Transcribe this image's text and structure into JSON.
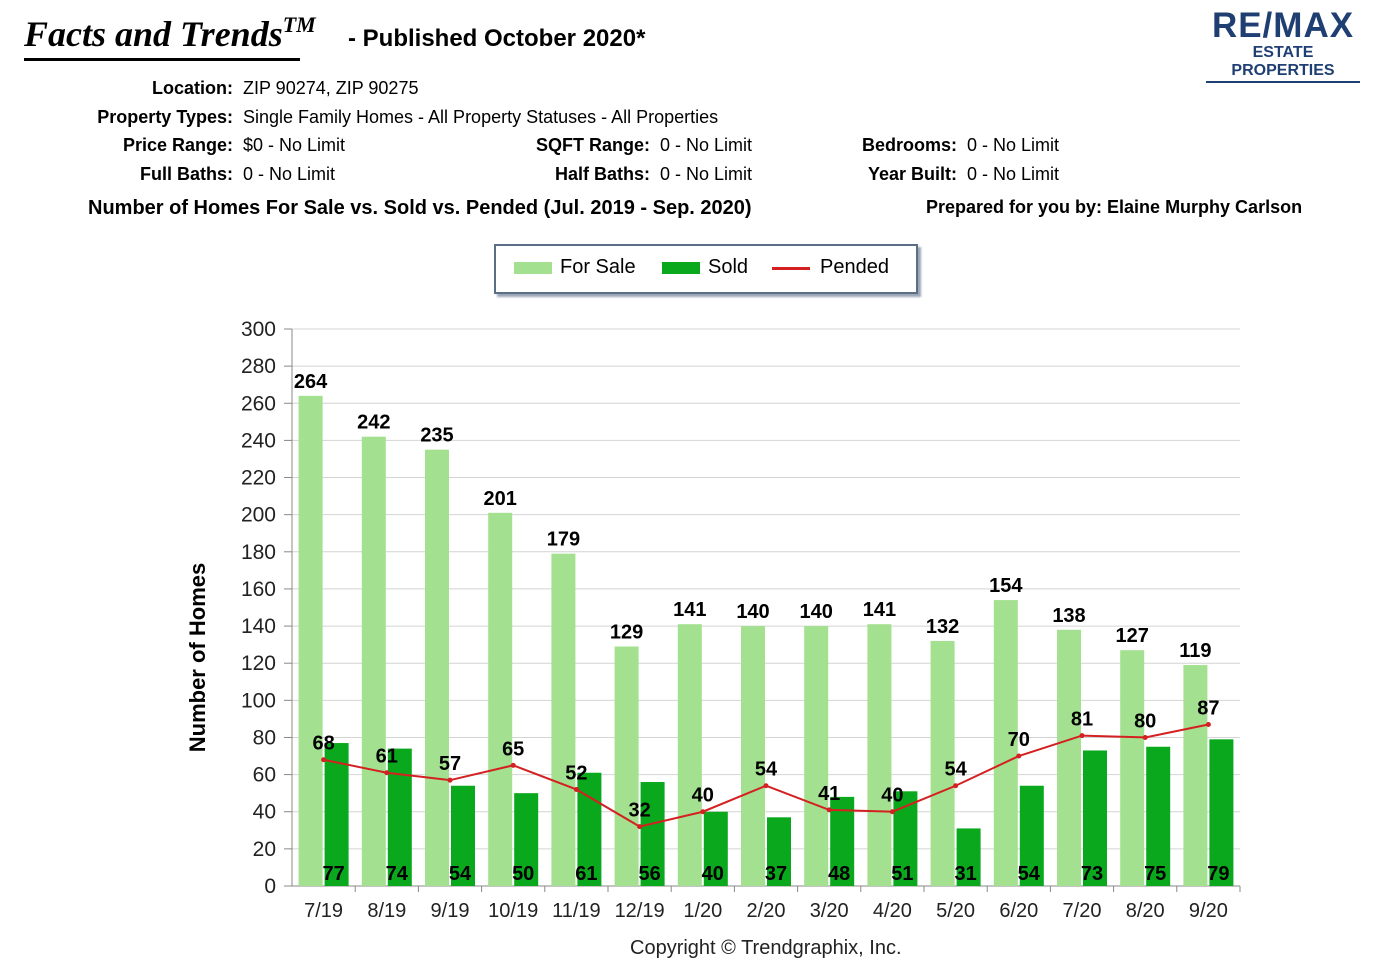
{
  "header": {
    "title": "Facts and Trends",
    "title_tm": "TM",
    "published": "- Published October 2020*",
    "logo_main": "RE/MAX",
    "logo_sub": "ESTATE PROPERTIES"
  },
  "filters": {
    "location_label": "Location:",
    "location_value": "ZIP 90274, ZIP 90275",
    "property_types_label": "Property Types:",
    "property_types_value": "Single Family Homes - All Property Statuses - All Properties",
    "price_range_label": "Price Range:",
    "price_range_value": "$0 - No Limit",
    "sqft_range_label": "SQFT Range:",
    "sqft_range_value": "0 - No Limit",
    "bedrooms_label": "Bedrooms:",
    "bedrooms_value": "0 - No Limit",
    "full_baths_label": "Full Baths:",
    "full_baths_value": "0 - No Limit",
    "half_baths_label": "Half Baths:",
    "half_baths_value": "0 - No Limit",
    "year_built_label": "Year Built:",
    "year_built_value": "0 - No Limit"
  },
  "prepared_for": "Prepared for you by: Elaine Murphy Carlson",
  "copyright": "Copyright © Trendgraphix, Inc.",
  "colors": {
    "for_sale": "#a3e08f",
    "sold": "#0aa81c",
    "pended": "#d42020",
    "logo": "#1f3f73"
  },
  "chart_data": {
    "type": "bar",
    "title": "Number of Homes For Sale vs. Sold vs. Pended (Jul. 2019 - Sep. 2020)",
    "ylabel": "Number of Homes",
    "xlabel": "",
    "ylim": [
      0,
      300
    ],
    "yticks": [
      0,
      20,
      40,
      60,
      80,
      100,
      120,
      140,
      160,
      180,
      200,
      220,
      240,
      260,
      280,
      300
    ],
    "grid": true,
    "legend_position": "top-center",
    "categories": [
      "7/19",
      "8/19",
      "9/19",
      "10/19",
      "11/19",
      "12/19",
      "1/20",
      "2/20",
      "3/20",
      "4/20",
      "5/20",
      "6/20",
      "7/20",
      "8/20",
      "9/20"
    ],
    "series": [
      {
        "name": "For Sale",
        "type": "bar",
        "values": [
          264,
          242,
          235,
          201,
          179,
          129,
          141,
          140,
          140,
          141,
          132,
          154,
          138,
          127,
          119
        ]
      },
      {
        "name": "Sold",
        "type": "bar",
        "values": [
          77,
          74,
          54,
          50,
          61,
          56,
          40,
          37,
          48,
          51,
          31,
          54,
          73,
          75,
          79
        ]
      },
      {
        "name": "Pended",
        "type": "line",
        "values": [
          68,
          61,
          57,
          65,
          52,
          32,
          40,
          54,
          41,
          40,
          54,
          70,
          81,
          80,
          87
        ]
      }
    ]
  }
}
